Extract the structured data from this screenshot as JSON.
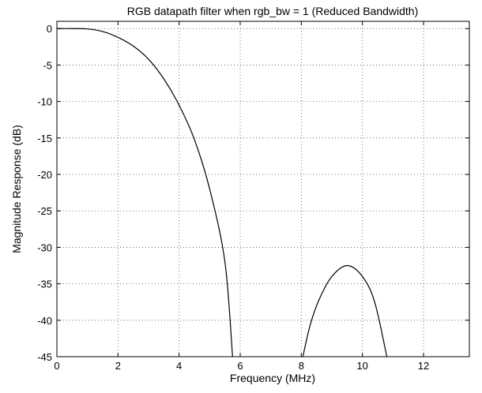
{
  "chart_data": {
    "type": "line",
    "title": "RGB datapath filter when rgb_bw = 1 (Reduced Bandwidth)",
    "xlabel": "Frequency (MHz)",
    "ylabel": "Magnitude Response (dB)",
    "xlim": [
      0,
      13.5
    ],
    "ylim": [
      -45,
      1
    ],
    "x_ticks": [
      "0",
      "2",
      "4",
      "6",
      "8",
      "10",
      "12"
    ],
    "y_ticks": [
      "0",
      "-5",
      "-10",
      "-15",
      "-20",
      "-25",
      "-30",
      "-35",
      "-40",
      "-45"
    ],
    "grid": true,
    "grid_style": "dotted",
    "line_color": "#000000",
    "series": [
      {
        "segments": [
          [
            [
              0,
              0
            ],
            [
              0.5,
              0
            ],
            [
              1.0,
              -0.05
            ],
            [
              1.5,
              -0.4
            ],
            [
              2.0,
              -1.2
            ],
            [
              2.5,
              -2.4
            ],
            [
              3.0,
              -4.2
            ],
            [
              3.5,
              -6.9
            ],
            [
              4.0,
              -10.5
            ],
            [
              4.5,
              -15.2
            ],
            [
              5.0,
              -22.0
            ],
            [
              5.5,
              -32.0
            ],
            [
              5.75,
              -45
            ]
          ],
          [
            [
              8.05,
              -45
            ],
            [
              8.3,
              -40.5
            ],
            [
              8.6,
              -37.0
            ],
            [
              9.0,
              -34.0
            ],
            [
              9.5,
              -32.5
            ],
            [
              10.0,
              -34.0
            ],
            [
              10.4,
              -37.5
            ],
            [
              10.8,
              -45
            ]
          ]
        ]
      }
    ]
  }
}
